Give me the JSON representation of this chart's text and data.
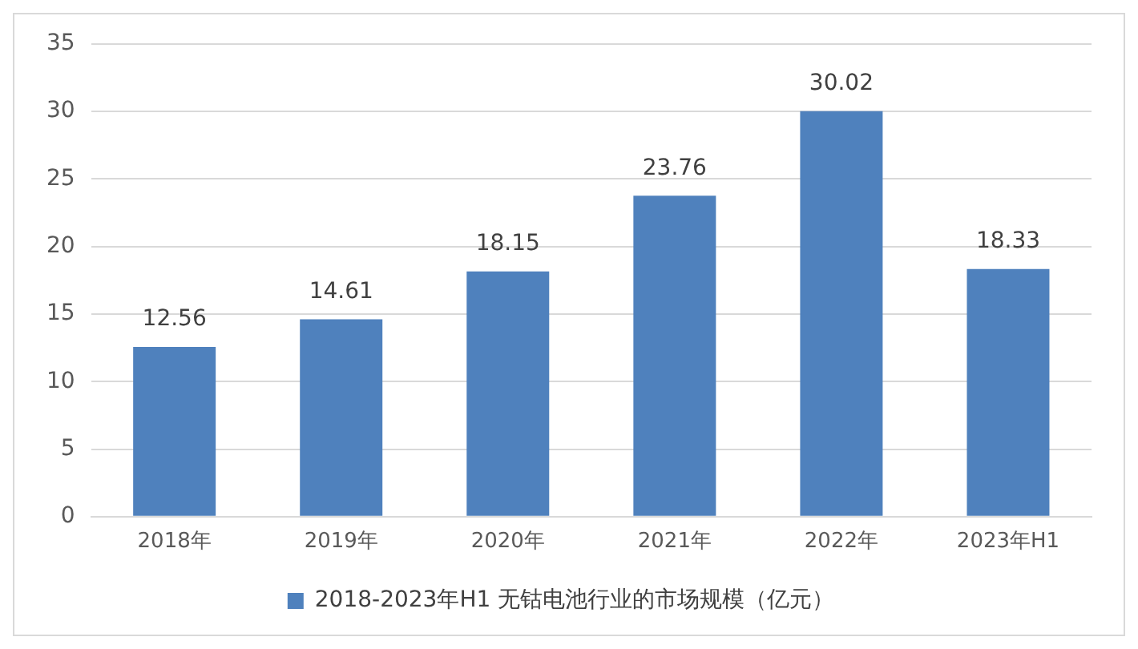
{
  "chart_data": {
    "type": "bar",
    "categories": [
      "2018年",
      "2019年",
      "2020年",
      "2021年",
      "2022年",
      "2023年H1"
    ],
    "series": [
      {
        "name": "2018-2023年H1 无钴电池行业的市场规模（亿元）",
        "color": "#4f81bd",
        "values": [
          12.56,
          14.61,
          18.15,
          23.76,
          30.02,
          18.33
        ]
      }
    ],
    "ylim": [
      0,
      35
    ],
    "yticks": [
      0,
      5,
      10,
      15,
      20,
      25,
      30,
      35
    ],
    "grid": "y",
    "legend": "bottom",
    "data_labels": true
  }
}
